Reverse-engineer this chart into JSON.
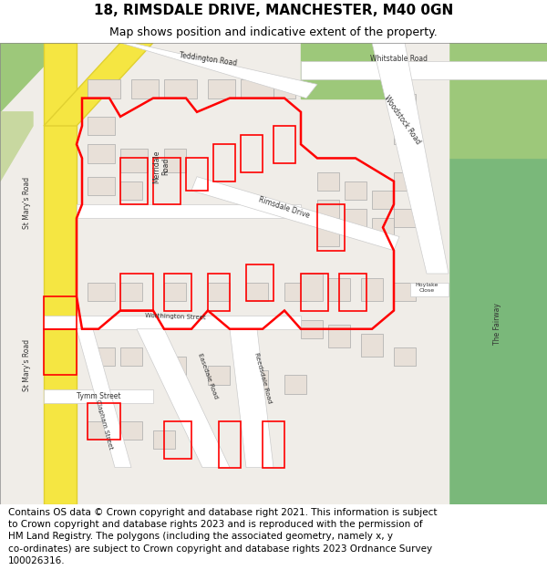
{
  "title_line1": "18, RIMSDALE DRIVE, MANCHESTER, M40 0GN",
  "title_line2": "Map shows position and indicative extent of the property.",
  "footer_lines": [
    "Contains OS data © Crown copyright and database right 2021. This information is subject",
    "to Crown copyright and database rights 2023 and is reproduced with the permission of",
    "HM Land Registry. The polygons (including the associated geometry, namely x, y",
    "co-ordinates) are subject to Crown copyright and database rights 2023 Ordnance Survey",
    "100026316."
  ],
  "map_bg": "#f0ede8",
  "road_color": "#ffffff",
  "road_outline": "#cccccc",
  "building_fill": "#e8e0d8",
  "building_outline": "#aaaaaa",
  "green_area": "#9dc87a",
  "green_area2": "#7ab87a",
  "highlight_color": "#ff0000",
  "yellow_road": "#f5e642",
  "title_fontsize": 11,
  "subtitle_fontsize": 9,
  "footer_fontsize": 7.5
}
